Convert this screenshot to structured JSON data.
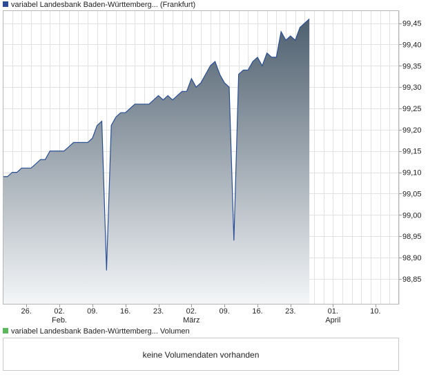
{
  "legend": {
    "price_label": "variabel Landesbank Baden-Württemberg... (Frankfurt)",
    "price_color": "#2a4e94",
    "volume_label": "variabel Landesbank Baden-Württemberg... Volumen",
    "volume_color": "#5cb85c"
  },
  "volume_panel": {
    "message": "keine Volumendaten vorhanden"
  },
  "chart_data": {
    "type": "area",
    "grid": true,
    "y_axis_position": "right",
    "ylim": [
      98.79,
      99.48
    ],
    "y_ticks": [
      {
        "value": 98.85,
        "label": "98,85"
      },
      {
        "value": 98.9,
        "label": "98,90"
      },
      {
        "value": 98.95,
        "label": "98,95"
      },
      {
        "value": 99.0,
        "label": "99,00"
      },
      {
        "value": 99.05,
        "label": "99,05"
      },
      {
        "value": 99.1,
        "label": "99,10"
      },
      {
        "value": 99.15,
        "label": "99,15"
      },
      {
        "value": 99.2,
        "label": "99,20"
      },
      {
        "value": 99.25,
        "label": "99,25"
      },
      {
        "value": 99.3,
        "label": "99,30"
      },
      {
        "value": 99.35,
        "label": "99,35"
      },
      {
        "value": 99.4,
        "label": "99,40"
      },
      {
        "value": 99.45,
        "label": "99,45"
      }
    ],
    "xlim": [
      "2026-01-21",
      "2026-04-15"
    ],
    "x_ticks": [
      {
        "date": "2026-01-26",
        "label": "26.",
        "month": ""
      },
      {
        "date": "2026-02-02",
        "label": "02.",
        "month": "Feb."
      },
      {
        "date": "2026-02-09",
        "label": "09.",
        "month": ""
      },
      {
        "date": "2026-02-16",
        "label": "16.",
        "month": ""
      },
      {
        "date": "2026-02-23",
        "label": "23.",
        "month": ""
      },
      {
        "date": "2026-03-02",
        "label": "02.",
        "month": "März"
      },
      {
        "date": "2026-03-09",
        "label": "09.",
        "month": ""
      },
      {
        "date": "2026-03-16",
        "label": "16.",
        "month": ""
      },
      {
        "date": "2026-03-23",
        "label": "23.",
        "month": ""
      },
      {
        "date": "2026-04-01",
        "label": "01.",
        "month": "April"
      },
      {
        "date": "2026-04-10",
        "label": "10.",
        "month": ""
      }
    ],
    "series": [
      {
        "line_color": "#2a4e94",
        "fill_top": "#4e5f6e",
        "fill_bottom": "#f4f6f8",
        "points": [
          [
            "2026-01-21",
            99.09
          ],
          [
            "2026-01-22",
            99.09
          ],
          [
            "2026-01-23",
            99.1
          ],
          [
            "2026-01-24",
            99.1
          ],
          [
            "2026-01-25",
            99.11
          ],
          [
            "2026-01-26",
            99.11
          ],
          [
            "2026-01-27",
            99.11
          ],
          [
            "2026-01-28",
            99.12
          ],
          [
            "2026-01-29",
            99.13
          ],
          [
            "2026-01-30",
            99.13
          ],
          [
            "2026-01-31",
            99.15
          ],
          [
            "2026-02-01",
            99.15
          ],
          [
            "2026-02-02",
            99.15
          ],
          [
            "2026-02-03",
            99.15
          ],
          [
            "2026-02-04",
            99.16
          ],
          [
            "2026-02-05",
            99.17
          ],
          [
            "2026-02-06",
            99.17
          ],
          [
            "2026-02-07",
            99.17
          ],
          [
            "2026-02-08",
            99.17
          ],
          [
            "2026-02-09",
            99.18
          ],
          [
            "2026-02-10",
            99.21
          ],
          [
            "2026-02-11",
            99.22
          ],
          [
            "2026-02-12",
            98.87
          ],
          [
            "2026-02-13",
            99.21
          ],
          [
            "2026-02-14",
            99.23
          ],
          [
            "2026-02-15",
            99.24
          ],
          [
            "2026-02-16",
            99.24
          ],
          [
            "2026-02-17",
            99.25
          ],
          [
            "2026-02-18",
            99.26
          ],
          [
            "2026-02-19",
            99.26
          ],
          [
            "2026-02-20",
            99.26
          ],
          [
            "2026-02-21",
            99.26
          ],
          [
            "2026-02-22",
            99.27
          ],
          [
            "2026-02-23",
            99.28
          ],
          [
            "2026-02-24",
            99.27
          ],
          [
            "2026-02-25",
            99.28
          ],
          [
            "2026-02-26",
            99.27
          ],
          [
            "2026-02-27",
            99.28
          ],
          [
            "2026-02-28",
            99.29
          ],
          [
            "2026-03-01",
            99.29
          ],
          [
            "2026-03-02",
            99.32
          ],
          [
            "2026-03-03",
            99.3
          ],
          [
            "2026-03-04",
            99.31
          ],
          [
            "2026-03-05",
            99.33
          ],
          [
            "2026-03-06",
            99.35
          ],
          [
            "2026-03-07",
            99.36
          ],
          [
            "2026-03-08",
            99.33
          ],
          [
            "2026-03-09",
            99.31
          ],
          [
            "2026-03-10",
            99.3
          ],
          [
            "2026-03-11",
            98.94
          ],
          [
            "2026-03-12",
            99.33
          ],
          [
            "2026-03-13",
            99.34
          ],
          [
            "2026-03-14",
            99.34
          ],
          [
            "2026-03-15",
            99.36
          ],
          [
            "2026-03-16",
            99.37
          ],
          [
            "2026-03-17",
            99.35
          ],
          [
            "2026-03-18",
            99.38
          ],
          [
            "2026-03-19",
            99.37
          ],
          [
            "2026-03-20",
            99.37
          ],
          [
            "2026-03-21",
            99.43
          ],
          [
            "2026-03-22",
            99.41
          ],
          [
            "2026-03-23",
            99.42
          ],
          [
            "2026-03-24",
            99.41
          ],
          [
            "2026-03-25",
            99.44
          ],
          [
            "2026-03-26",
            99.45
          ],
          [
            "2026-03-27",
            99.46
          ]
        ]
      }
    ]
  }
}
